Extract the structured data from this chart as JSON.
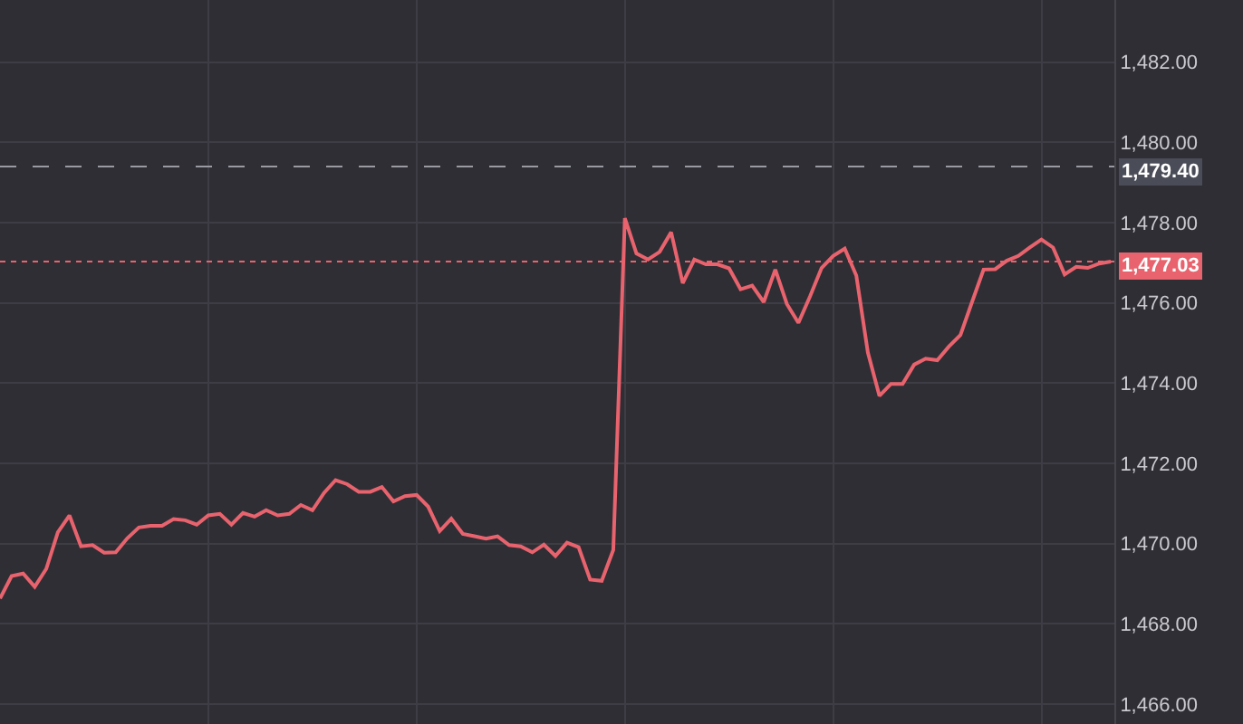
{
  "chart_data": {
    "type": "line",
    "categories": [
      null,
      null,
      null,
      null,
      null,
      null,
      null,
      null,
      null,
      null,
      null,
      null,
      null,
      null,
      null,
      null,
      null,
      null,
      null,
      null,
      null,
      null,
      null,
      null,
      null,
      null,
      null,
      null,
      null,
      null,
      null,
      null,
      null,
      null,
      null,
      null,
      null,
      null,
      null,
      null,
      null,
      null,
      null,
      null,
      null,
      null,
      null,
      null,
      null,
      null,
      null,
      null,
      null,
      null,
      null,
      null,
      null,
      null,
      null,
      null,
      null,
      null,
      null,
      null,
      null,
      null,
      null,
      null,
      null,
      null,
      null,
      null,
      null,
      null,
      null,
      null,
      null,
      null,
      null,
      null,
      null,
      null,
      null,
      null,
      null,
      null,
      null,
      null,
      null,
      null,
      null,
      null,
      null,
      null,
      null,
      null,
      null
    ],
    "series": [
      {
        "color": "#e8636d",
        "values": [
          1468.63,
          1469.19,
          1469.25,
          1468.92,
          1469.37,
          1470.28,
          1470.7,
          1469.93,
          1469.96,
          1469.77,
          1469.78,
          1470.13,
          1470.4,
          1470.44,
          1470.44,
          1470.61,
          1470.58,
          1470.47,
          1470.7,
          1470.74,
          1470.47,
          1470.76,
          1470.67,
          1470.83,
          1470.7,
          1470.74,
          1470.96,
          1470.83,
          1471.26,
          1471.58,
          1471.48,
          1471.29,
          1471.29,
          1471.41,
          1471.05,
          1471.18,
          1471.21,
          1470.92,
          1470.31,
          1470.62,
          1470.24,
          1470.18,
          1470.12,
          1470.18,
          1469.96,
          1469.93,
          1469.78,
          1469.97,
          1469.69,
          1470.02,
          1469.91,
          1469.1,
          1469.07,
          1469.84,
          1478.11,
          1477.23,
          1477.08,
          1477.27,
          1477.76,
          1476.49,
          1477.08,
          1476.96,
          1476.96,
          1476.86,
          1476.34,
          1476.43,
          1476.02,
          1476.83,
          1475.97,
          1475.5,
          1476.16,
          1476.87,
          1477.17,
          1477.35,
          1476.68,
          1474.76,
          1473.68,
          1473.98,
          1473.98,
          1474.46,
          1474.61,
          1474.57,
          1474.91,
          1475.2,
          1476.02,
          1476.83,
          1476.84,
          1477.05,
          1477.17,
          1477.38,
          1477.58,
          1477.38,
          1476.71,
          1476.9,
          1476.87,
          1476.98,
          1477.03
        ]
      }
    ],
    "ylim": [
      1465.5,
      1483.55
    ],
    "yticks": [
      {
        "value": 1466,
        "label": "1,466.00"
      },
      {
        "value": 1468,
        "label": "1,468.00"
      },
      {
        "value": 1470,
        "label": "1,470.00"
      },
      {
        "value": 1472,
        "label": "1,472.00"
      },
      {
        "value": 1474,
        "label": "1,474.00"
      },
      {
        "value": 1476,
        "label": "1,476.00"
      },
      {
        "value": 1478,
        "label": "1,478.00"
      },
      {
        "value": 1480,
        "label": "1,480.00"
      },
      {
        "value": 1482,
        "label": "1,482.00"
      }
    ],
    "ref_lines": [
      {
        "axis": "y",
        "value": 1479.4,
        "label": "1,479.40",
        "color": "#9a9aa2",
        "line_style": "dashed"
      },
      {
        "axis": "y",
        "value": 1477.03,
        "label": "1,477.03",
        "color": "#e8636d",
        "line_style": "dotted"
      }
    ],
    "grid": true,
    "marker": "none",
    "line_style": "solid"
  }
}
